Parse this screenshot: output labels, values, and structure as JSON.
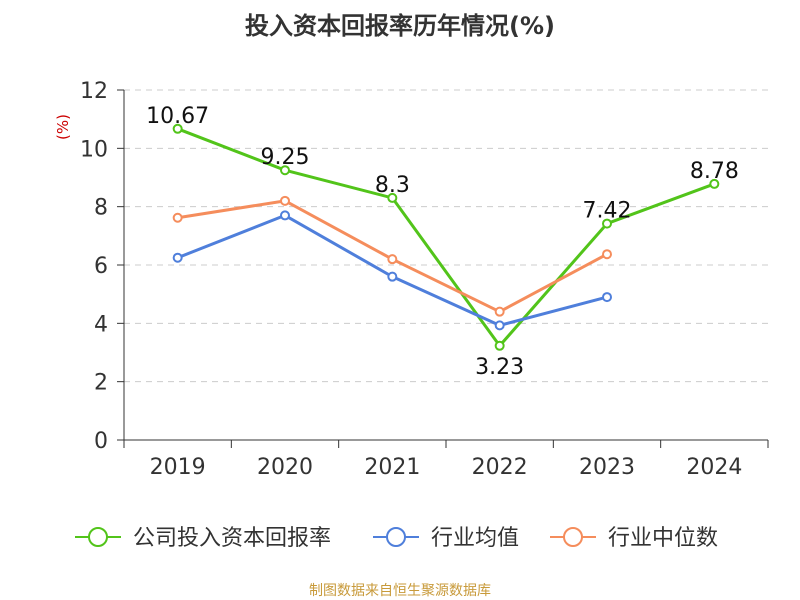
{
  "chart_data": {
    "type": "line",
    "title": "投入资本回报率历年情况(%)",
    "xlabel": "",
    "ylabel": "(%)",
    "ylim": [
      0,
      12
    ],
    "yticks": [
      0,
      2,
      4,
      6,
      8,
      10,
      12
    ],
    "categories": [
      "2019",
      "2020",
      "2021",
      "2022",
      "2023",
      "2024"
    ],
    "grid": true,
    "legend_position": "bottom",
    "series": [
      {
        "name": "公司投入资本回报率",
        "color": "#52c41a",
        "values": [
          10.67,
          9.25,
          8.3,
          3.23,
          7.42,
          8.78
        ],
        "labels": [
          "10.67",
          "9.25",
          "8.3",
          "3.23",
          "7.42",
          "8.78"
        ],
        "label_position": [
          "above",
          "above",
          "above",
          "below",
          "above",
          "above"
        ]
      },
      {
        "name": "行业均值",
        "color": "#4f7fdb",
        "values": [
          6.25,
          7.7,
          5.6,
          3.93,
          4.9,
          null
        ]
      },
      {
        "name": "行业中位数",
        "color": "#f58d5c",
        "values": [
          7.62,
          8.2,
          6.2,
          4.4,
          6.37,
          null
        ]
      }
    ]
  },
  "source": {
    "text": "制图数据来自恒生聚源数据库",
    "color": "#c89a3a"
  },
  "ylabel_color": "#cc0000"
}
